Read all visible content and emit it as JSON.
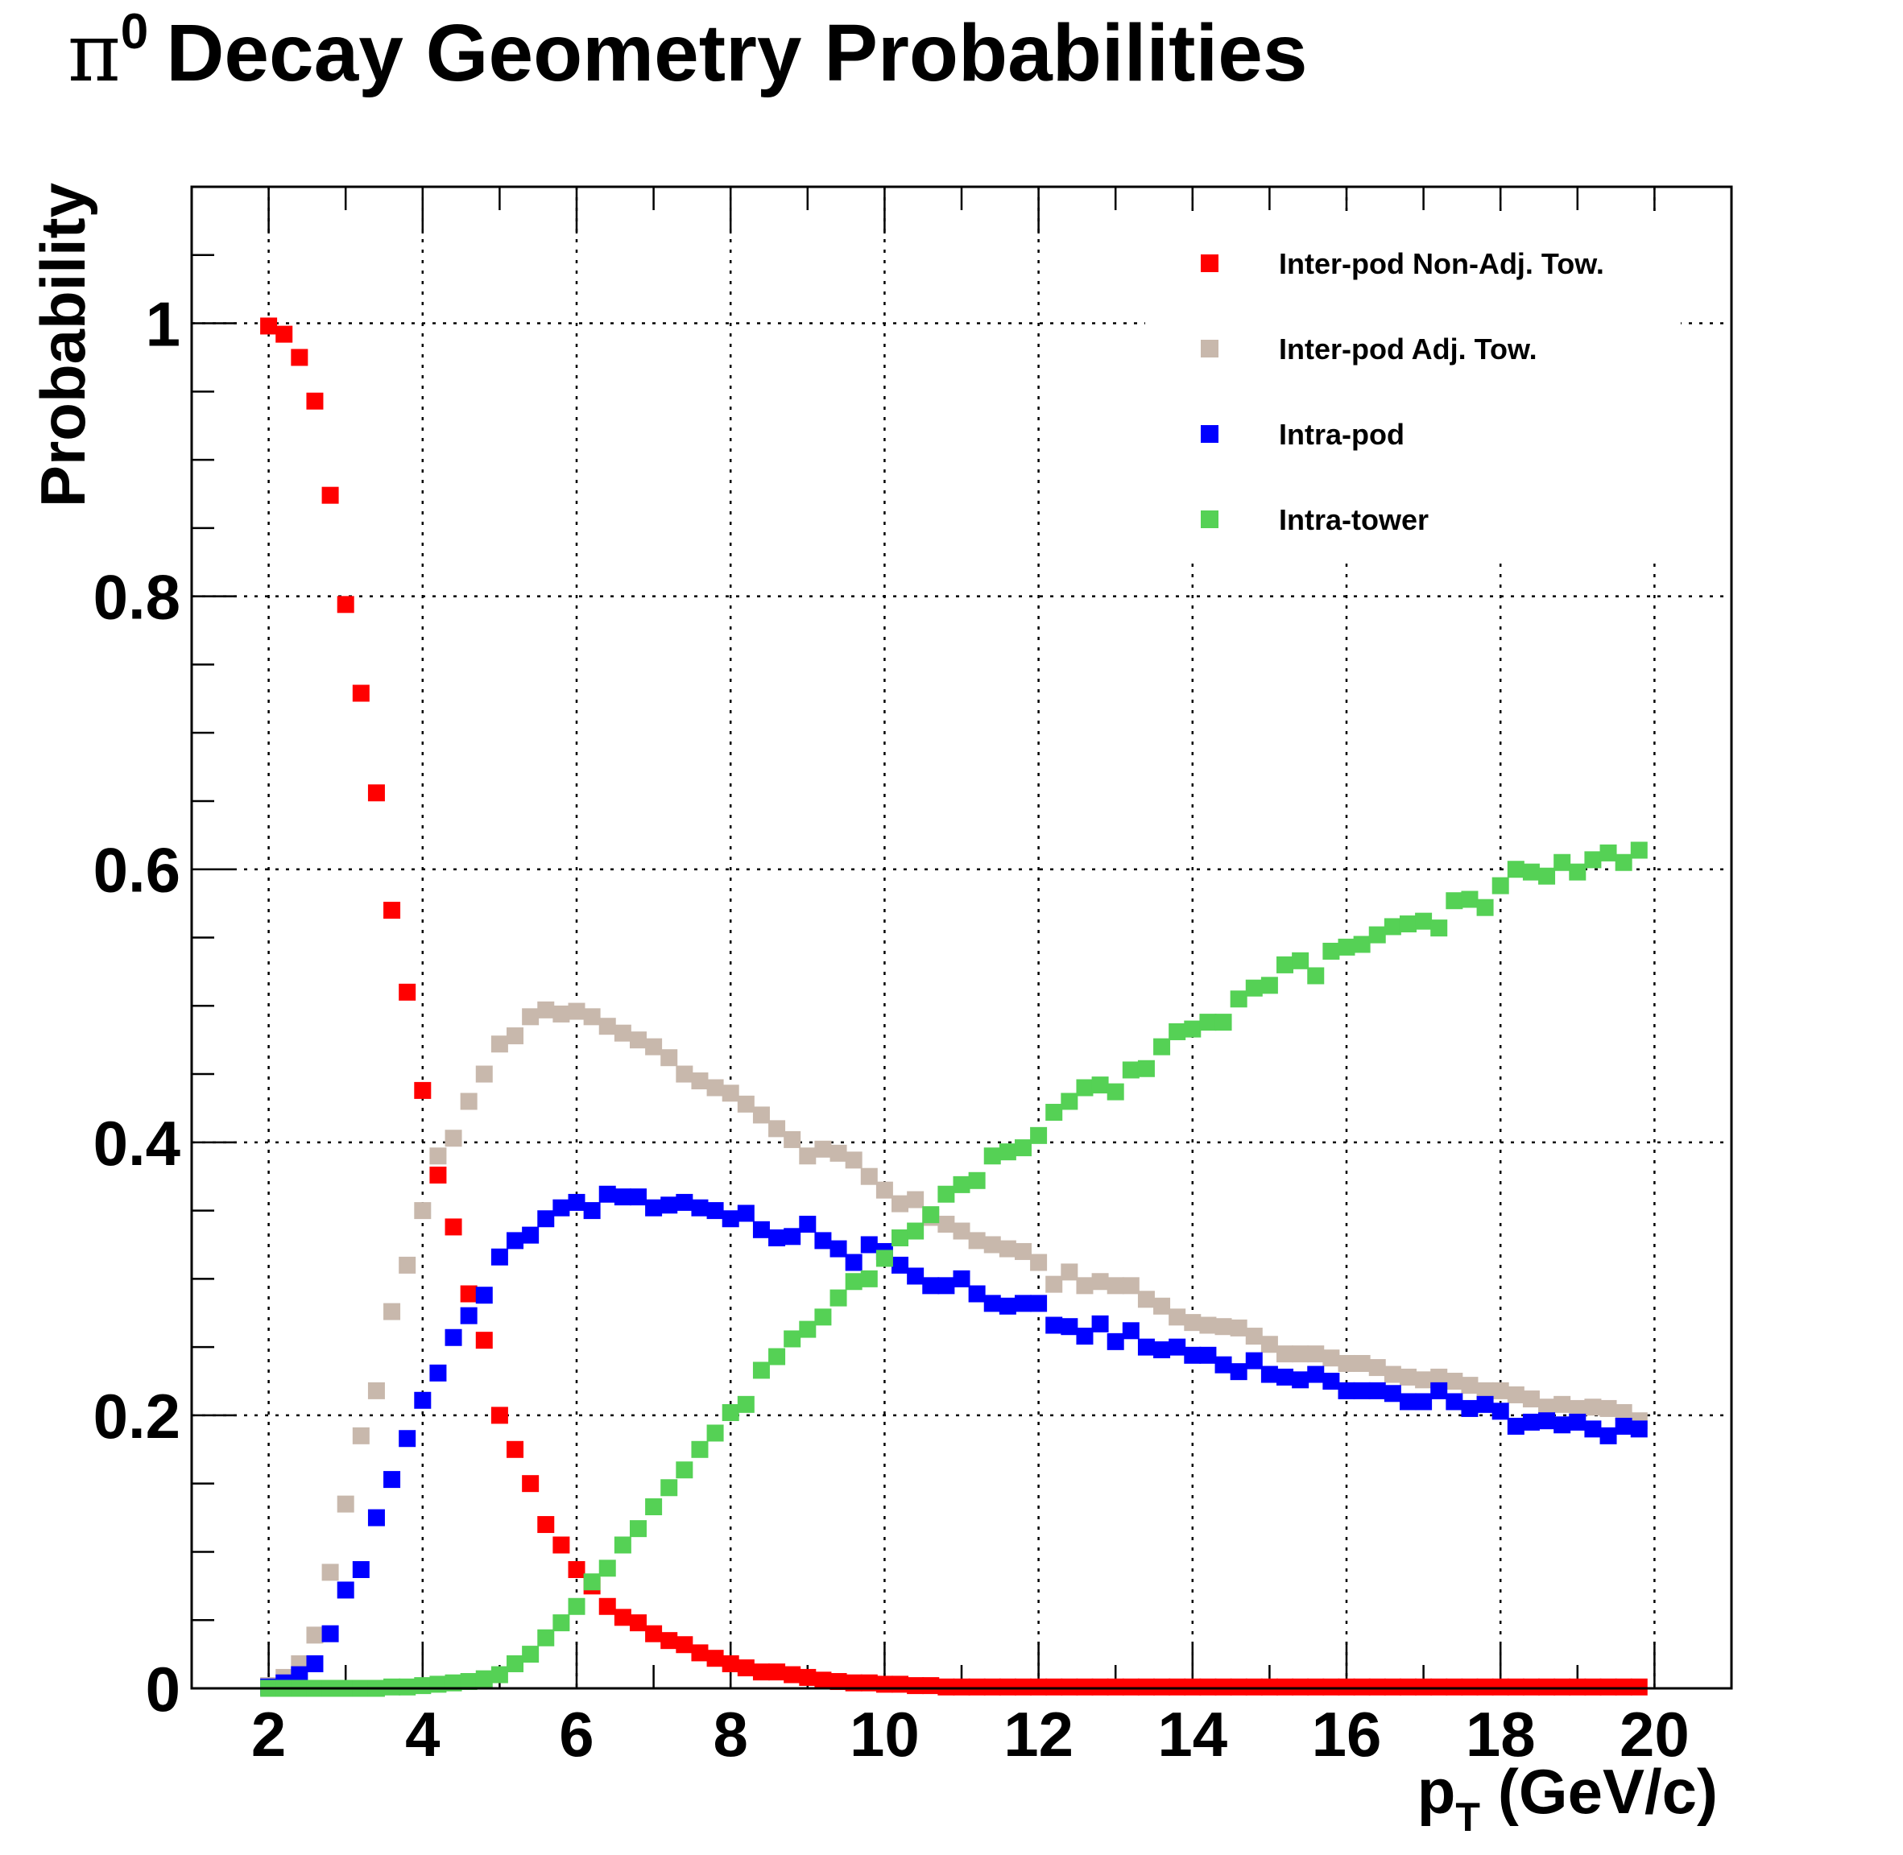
{
  "chart_data": {
    "type": "scatter",
    "title": {
      "symbol": "π",
      "superscript": "0",
      "text": "Decay Geometry Probabilities"
    },
    "xlabel": {
      "main": "p",
      "subscript": "T",
      "rest": "(GeV/c)"
    },
    "ylabel": "Probability",
    "xlim": [
      1,
      21
    ],
    "ylim": [
      0,
      1.1
    ],
    "grid": true,
    "legend_position": "top-right",
    "x_ticks": [
      "2",
      "4",
      "6",
      "8",
      "10",
      "12",
      "14",
      "16",
      "18",
      "20"
    ],
    "y_ticks": [
      "0",
      "0.2",
      "0.4",
      "0.6",
      "0.8",
      "1"
    ],
    "x": [
      2.0,
      2.2,
      2.4,
      2.6,
      2.8,
      3.0,
      3.2,
      3.4,
      3.6,
      3.8,
      4.0,
      4.2,
      4.4,
      4.6,
      4.8,
      5.0,
      5.2,
      5.4,
      5.6,
      5.8,
      6.0,
      6.2,
      6.4,
      6.6,
      6.8,
      7.0,
      7.2,
      7.4,
      7.6,
      7.8,
      8.0,
      8.2,
      8.4,
      8.6,
      8.8,
      9.0,
      9.2,
      9.4,
      9.6,
      9.8,
      10.0,
      10.2,
      10.4,
      10.6,
      10.8,
      11.0,
      11.2,
      11.4,
      11.6,
      11.8,
      12.0,
      12.2,
      12.4,
      12.6,
      12.8,
      13.0,
      13.2,
      13.4,
      13.6,
      13.8,
      14.0,
      14.2,
      14.4,
      14.6,
      14.8,
      15.0,
      15.2,
      15.4,
      15.6,
      15.8,
      16.0,
      16.2,
      16.4,
      16.6,
      16.8,
      17.0,
      17.2,
      17.4,
      17.6,
      17.8,
      18.0,
      18.2,
      18.4,
      18.6,
      18.8,
      19.0,
      19.2,
      19.4,
      19.6,
      19.8
    ],
    "series": [
      {
        "name": "Inter-pod Non-Adj. Tow.",
        "color": "#ff0000",
        "values": [
          0.998,
          0.992,
          0.975,
          0.943,
          0.874,
          0.794,
          0.729,
          0.656,
          0.57,
          0.51,
          0.438,
          0.376,
          0.338,
          0.289,
          0.255,
          0.2,
          0.175,
          0.15,
          0.12,
          0.105,
          0.087,
          0.075,
          0.06,
          0.052,
          0.048,
          0.04,
          0.035,
          0.032,
          0.026,
          0.022,
          0.018,
          0.015,
          0.012,
          0.012,
          0.01,
          0.008,
          0.006,
          0.005,
          0.004,
          0.004,
          0.003,
          0.003,
          0.002,
          0.002,
          0.001,
          0.001,
          0.001,
          0.001,
          0.001,
          0.001,
          0.001,
          0.001,
          0.001,
          0.001,
          0.001,
          0.001,
          0.001,
          0.001,
          0.001,
          0.001,
          0.001,
          0.001,
          0.001,
          0.001,
          0.001,
          0.001,
          0.001,
          0.001,
          0.001,
          0.001,
          0.001,
          0.001,
          0.001,
          0.001,
          0.001,
          0.001,
          0.001,
          0.001,
          0.001,
          0.001,
          0.001,
          0.001,
          0.001,
          0.001,
          0.001,
          0.001,
          0.001,
          0.001,
          0.001,
          0.001
        ]
      },
      {
        "name": "Inter-pod Adj. Tow.",
        "color": "#c8b8ac",
        "values": [
          0.002,
          0.008,
          0.018,
          0.039,
          0.085,
          0.135,
          0.185,
          0.218,
          0.276,
          0.31,
          0.35,
          0.39,
          0.403,
          0.43,
          0.45,
          0.472,
          0.478,
          0.492,
          0.497,
          0.494,
          0.496,
          0.492,
          0.485,
          0.48,
          0.475,
          0.47,
          0.462,
          0.45,
          0.445,
          0.44,
          0.436,
          0.428,
          0.42,
          0.41,
          0.402,
          0.39,
          0.395,
          0.392,
          0.387,
          0.375,
          0.365,
          0.355,
          0.358,
          0.345,
          0.34,
          0.335,
          0.328,
          0.325,
          0.322,
          0.32,
          0.312,
          0.296,
          0.305,
          0.295,
          0.298,
          0.295,
          0.295,
          0.285,
          0.28,
          0.272,
          0.268,
          0.266,
          0.265,
          0.264,
          0.258,
          0.252,
          0.245,
          0.245,
          0.245,
          0.242,
          0.238,
          0.238,
          0.235,
          0.23,
          0.228,
          0.226,
          0.228,
          0.225,
          0.222,
          0.218,
          0.218,
          0.215,
          0.212,
          0.206,
          0.208,
          0.205,
          0.206,
          0.205,
          0.202,
          0.196
        ]
      },
      {
        "name": "Intra-pod",
        "color": "#0000ff",
        "values": [
          0.001,
          0.004,
          0.01,
          0.018,
          0.04,
          0.072,
          0.087,
          0.125,
          0.153,
          0.183,
          0.211,
          0.231,
          0.257,
          0.273,
          0.288,
          0.316,
          0.328,
          0.332,
          0.344,
          0.352,
          0.356,
          0.35,
          0.362,
          0.36,
          0.36,
          0.352,
          0.354,
          0.356,
          0.352,
          0.35,
          0.344,
          0.348,
          0.336,
          0.33,
          0.331,
          0.34,
          0.328,
          0.322,
          0.312,
          0.325,
          0.32,
          0.31,
          0.302,
          0.295,
          0.295,
          0.3,
          0.289,
          0.282,
          0.28,
          0.282,
          0.282,
          0.266,
          0.265,
          0.258,
          0.267,
          0.254,
          0.262,
          0.25,
          0.248,
          0.25,
          0.244,
          0.244,
          0.237,
          0.232,
          0.24,
          0.23,
          0.228,
          0.226,
          0.23,
          0.225,
          0.218,
          0.218,
          0.218,
          0.216,
          0.21,
          0.21,
          0.218,
          0.21,
          0.205,
          0.208,
          0.203,
          0.192,
          0.195,
          0.196,
          0.193,
          0.195,
          0.19,
          0.185,
          0.192,
          0.19
        ]
      },
      {
        "name": "Intra-tower",
        "color": "#55d155",
        "values": [
          0.0,
          0.0,
          0.0,
          0.0,
          0.0,
          0.0,
          0.0,
          0.0,
          0.001,
          0.001,
          0.002,
          0.003,
          0.004,
          0.005,
          0.007,
          0.01,
          0.018,
          0.025,
          0.037,
          0.048,
          0.06,
          0.078,
          0.088,
          0.105,
          0.117,
          0.133,
          0.147,
          0.16,
          0.175,
          0.187,
          0.202,
          0.208,
          0.233,
          0.243,
          0.256,
          0.263,
          0.272,
          0.286,
          0.298,
          0.3,
          0.315,
          0.33,
          0.335,
          0.347,
          0.362,
          0.369,
          0.372,
          0.39,
          0.393,
          0.396,
          0.405,
          0.422,
          0.43,
          0.44,
          0.442,
          0.437,
          0.453,
          0.454,
          0.47,
          0.481,
          0.483,
          0.488,
          0.488,
          0.505,
          0.513,
          0.515,
          0.53,
          0.533,
          0.522,
          0.54,
          0.543,
          0.545,
          0.552,
          0.558,
          0.56,
          0.562,
          0.557,
          0.577,
          0.578,
          0.572,
          0.588,
          0.6,
          0.598,
          0.595,
          0.605,
          0.598,
          0.607,
          0.612,
          0.605,
          0.614
        ]
      }
    ]
  }
}
